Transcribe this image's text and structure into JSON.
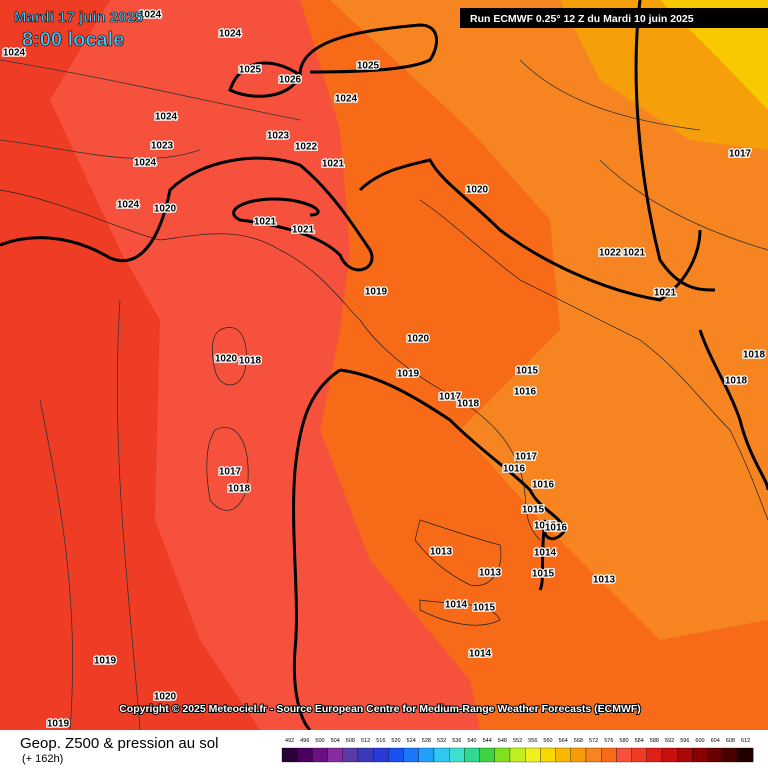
{
  "header": {
    "date": "Mardi 17 juin 2025",
    "time": "8:00 locale",
    "run": "Run ECMWF 0.25° 12 Z du Mardi 10 juin 2025"
  },
  "copyright": "Copyright © 2025 Meteociel.fr - Source European Centre for Medium-Range Weather Forecasts (ECMWF)",
  "footer": {
    "title": "Geop. Z500 & pression au sol",
    "lead": "(+ 162h)"
  },
  "isobar_labels": [
    1024,
    1024,
    1024,
    1025,
    1026,
    1025,
    1024,
    1024,
    1023,
    1022,
    1023,
    1024,
    1021,
    1024,
    1020,
    1021,
    1021,
    1020,
    1022,
    1021,
    1021,
    1017,
    1019,
    1020,
    1020,
    1018,
    1019,
    1015,
    1016,
    1017,
    1018,
    1018,
    1018,
    1017,
    1016,
    1016,
    1015,
    1015,
    1016,
    1014,
    1015,
    1013,
    1013,
    1013,
    1014,
    1015,
    1014,
    1017,
    1018,
    1019,
    1020,
    1019
  ],
  "legend": {
    "labels": [
      492,
      496,
      500,
      504,
      508,
      512,
      516,
      520,
      524,
      528,
      532,
      536,
      540,
      544,
      548,
      552,
      556,
      560,
      564,
      568,
      572,
      576,
      580,
      584,
      588,
      592,
      596,
      600,
      604,
      608,
      612
    ],
    "colors": [
      "#2a0038",
      "#4b0060",
      "#6a1080",
      "#8a2aa0",
      "#5a3aa8",
      "#3a3ab8",
      "#2a3ad8",
      "#1a50f0",
      "#1a78f8",
      "#20a0f8",
      "#30c8f0",
      "#40e0d0",
      "#30d890",
      "#40d040",
      "#80e020",
      "#c0f020",
      "#f0f020",
      "#f8d800",
      "#f8b800",
      "#f89a0a",
      "#f68420",
      "#f66a18",
      "#f5513c",
      "#ee3d24",
      "#e02018",
      "#c81010",
      "#a80808",
      "#880000",
      "#680000",
      "#480000",
      "#200000"
    ]
  }
}
